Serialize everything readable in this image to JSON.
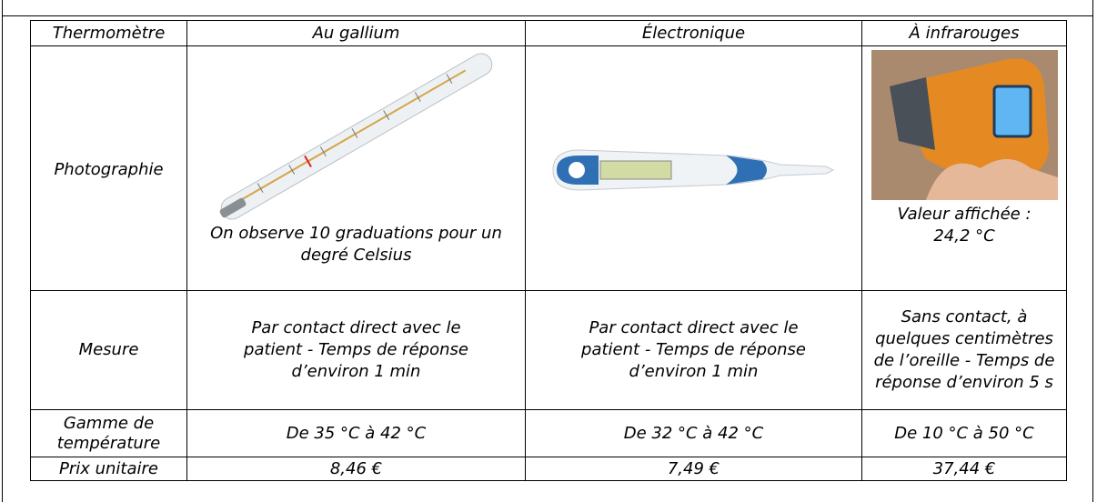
{
  "table": {
    "header": [
      "Thermomètre",
      "Au gallium",
      "Électronique",
      "À infrarouges"
    ],
    "rows": [
      {
        "label": "Photographie",
        "cells": [
          "On observe 10 graduations pour un degré Celsius",
          null,
          "Valeur affichée : 24,2 °C"
        ]
      },
      {
        "label": "Mesure",
        "cells": [
          "Par contact direct avec le patient - Temps de réponse d’environ 1 min",
          "Par contact direct avec le patient - Temps de réponse d’environ 1 min",
          "Sans contact, à quelques centimètres de l’oreille - Temps de réponse d’environ 5 s"
        ]
      },
      {
        "label": "Gamme de température",
        "cells": [
          "De 35 °C à 42 °C",
          "De 32 °C à 42 °C",
          "De 10 °C à 50 °C"
        ]
      },
      {
        "label": "Prix unitaire",
        "cells": [
          "8,46 €",
          "7,49 €",
          "37,44 €"
        ]
      }
    ]
  }
}
